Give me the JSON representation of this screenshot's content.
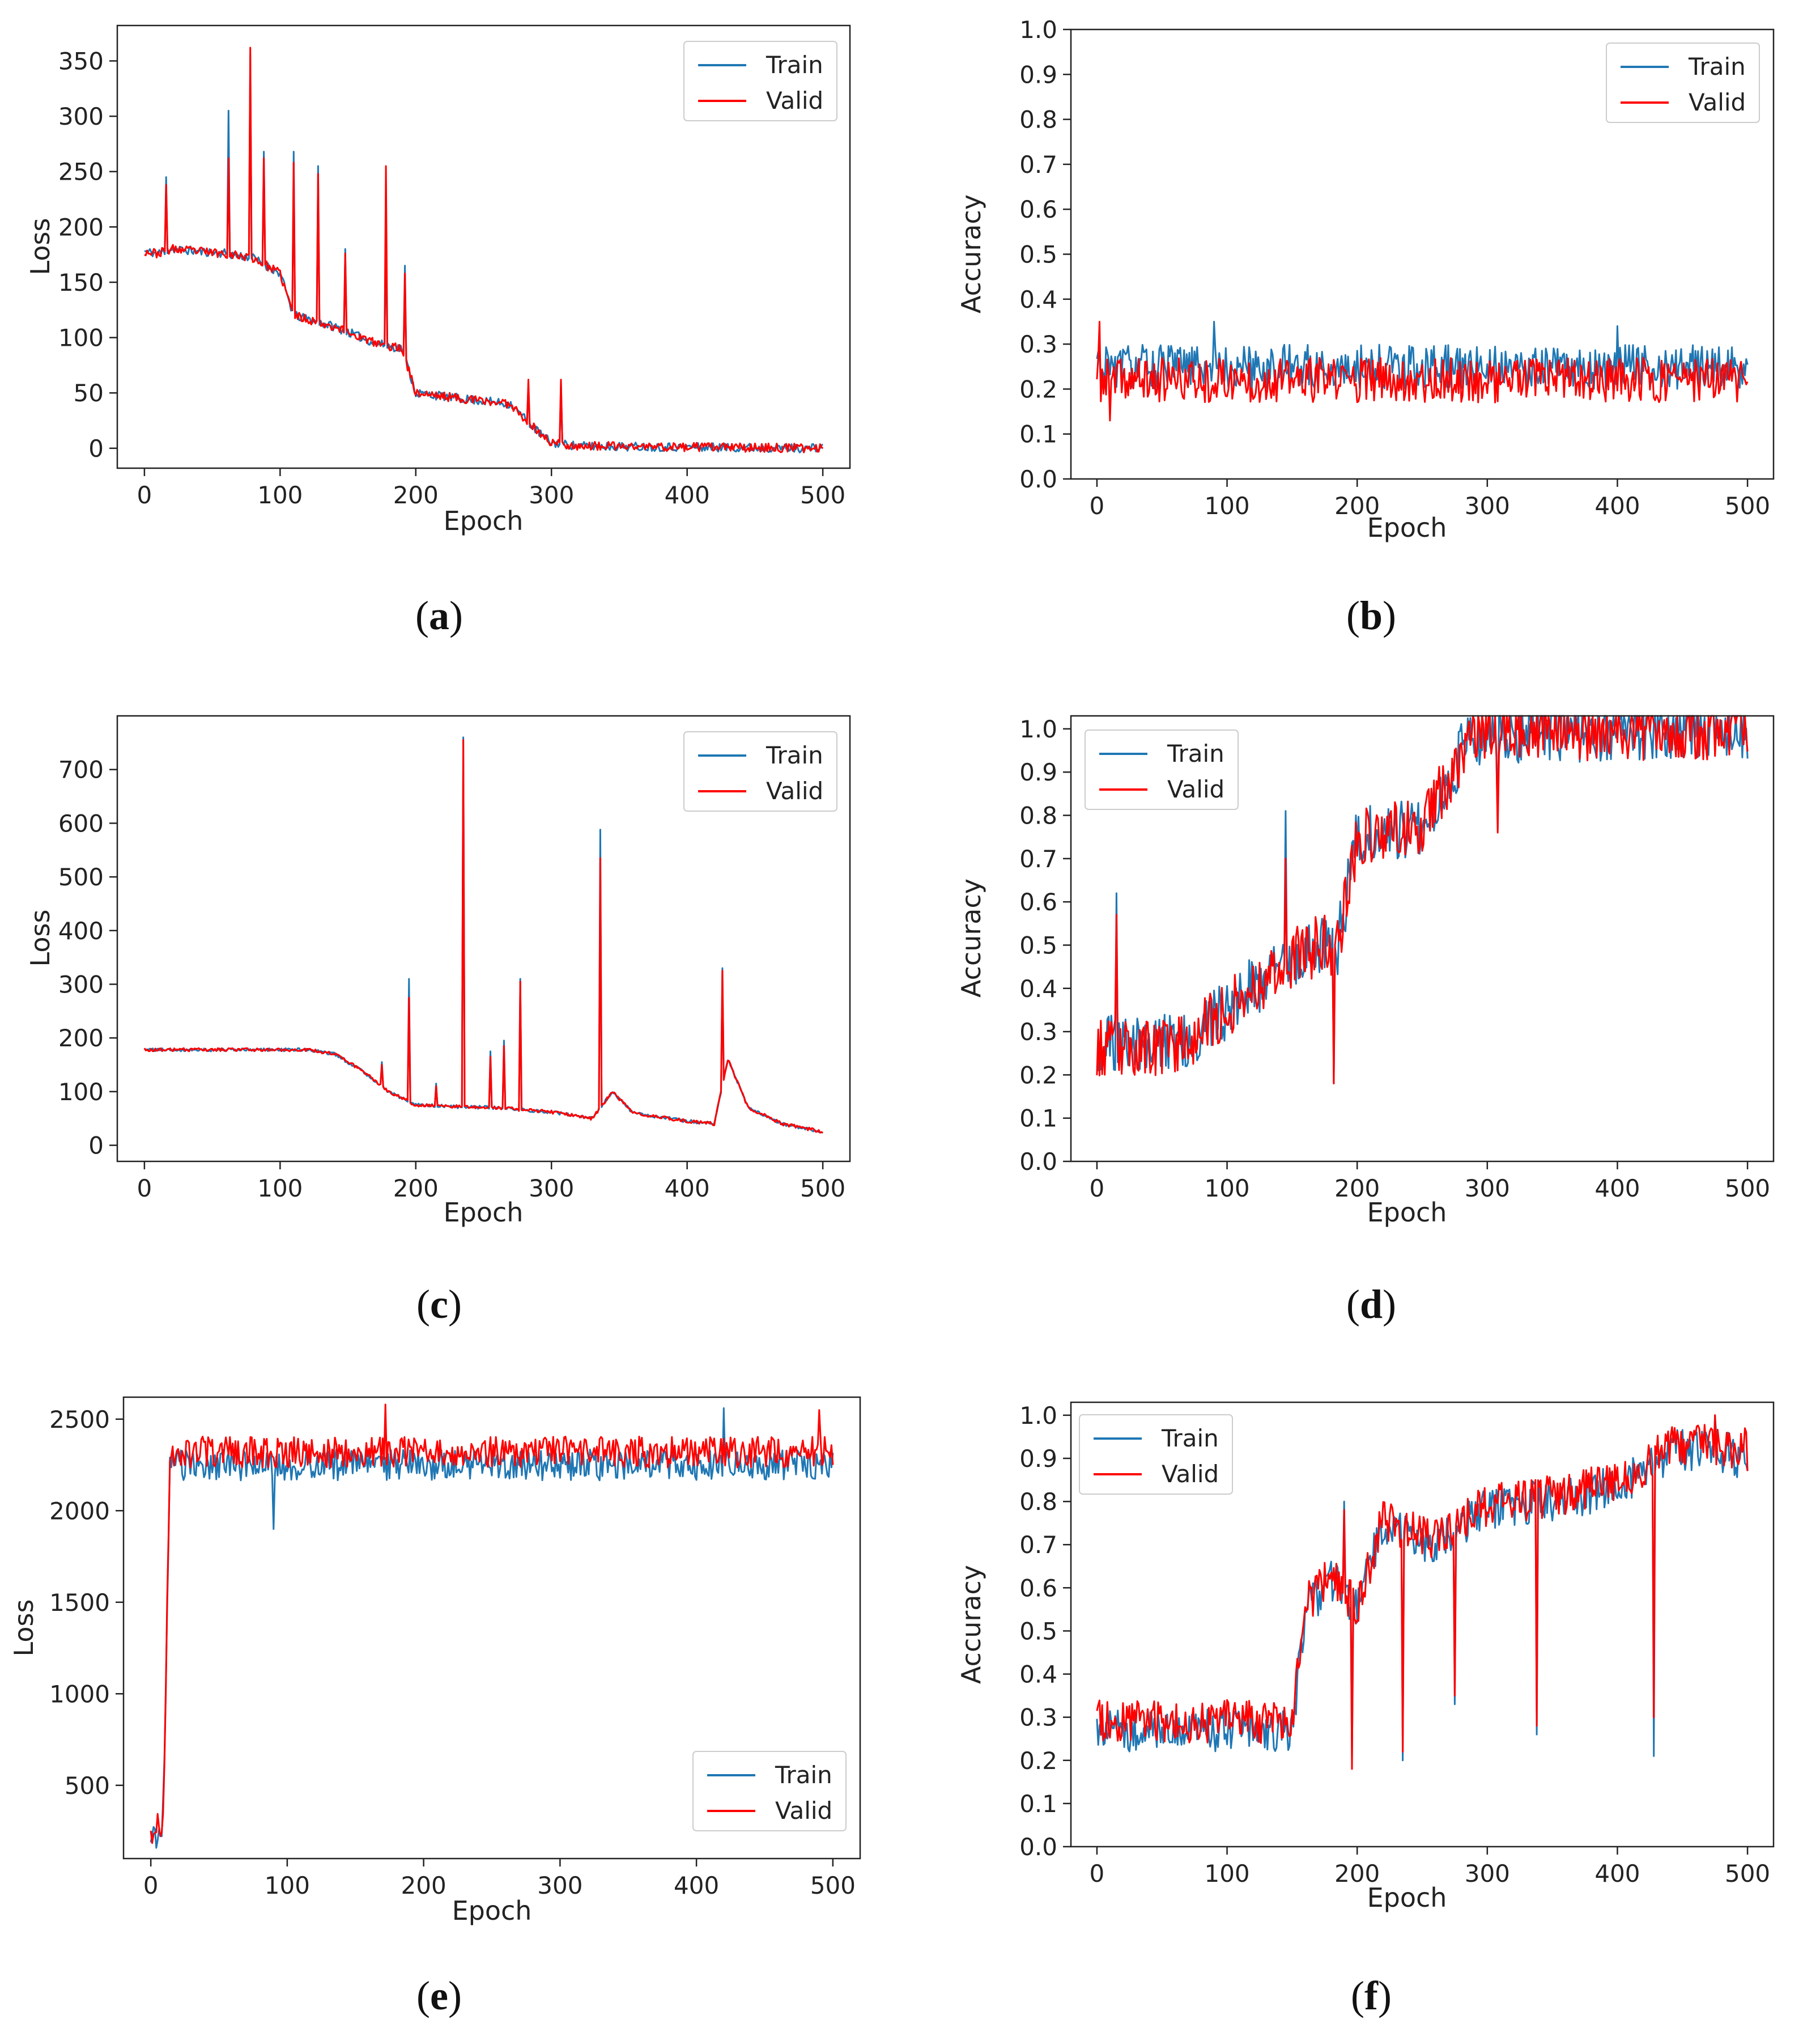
{
  "colors": {
    "train": "#1f77b4",
    "valid": "#ff0000",
    "axes": "#222222",
    "legend_border": "#cccccc"
  },
  "chart_data": [
    {
      "id": "a",
      "type": "line",
      "caption_label": "a",
      "xlabel": "Epoch",
      "ylabel": "Loss",
      "xlim": [
        -20,
        520
      ],
      "ylim": [
        -18,
        382
      ],
      "xticks": [
        "0",
        "100",
        "200",
        "300",
        "400",
        "500"
      ],
      "yticks": [
        "0",
        "50",
        "100",
        "150",
        "200",
        "250",
        "300",
        "350"
      ],
      "legend_position": "top-right",
      "legend": [
        "Train",
        "Valid"
      ],
      "series": [
        {
          "name": "Train",
          "noise": 4,
          "seed": 11,
          "keypoints": [
            [
              0,
              178
            ],
            [
              10,
              176
            ],
            [
              20,
              180
            ],
            [
              40,
              178
            ],
            [
              60,
              176
            ],
            [
              80,
              172
            ],
            [
              100,
              158
            ],
            [
              110,
              120
            ],
            [
              140,
              110
            ],
            [
              170,
              95
            ],
            [
              190,
              90
            ],
            [
              200,
              50
            ],
            [
              240,
              44
            ],
            [
              270,
              40
            ],
            [
              290,
              15
            ],
            [
              300,
              5
            ],
            [
              320,
              2
            ],
            [
              500,
              0
            ]
          ],
          "spikes": [
            [
              16,
              245
            ],
            [
              62,
              305
            ],
            [
              78,
              355
            ],
            [
              88,
              268
            ],
            [
              110,
              268
            ],
            [
              128,
              255
            ],
            [
              148,
              180
            ],
            [
              178,
              195
            ],
            [
              192,
              165
            ],
            [
              283,
              55
            ],
            [
              307,
              60
            ]
          ]
        },
        {
          "name": "Valid",
          "noise": 4,
          "seed": 23,
          "keypoints": [
            [
              0,
              178
            ],
            [
              10,
              176
            ],
            [
              20,
              180
            ],
            [
              40,
              178
            ],
            [
              60,
              176
            ],
            [
              80,
              172
            ],
            [
              100,
              158
            ],
            [
              110,
              120
            ],
            [
              140,
              110
            ],
            [
              170,
              95
            ],
            [
              190,
              90
            ],
            [
              200,
              50
            ],
            [
              240,
              44
            ],
            [
              270,
              40
            ],
            [
              290,
              15
            ],
            [
              300,
              5
            ],
            [
              320,
              2
            ],
            [
              500,
              0
            ]
          ],
          "spikes": [
            [
              16,
              238
            ],
            [
              62,
              262
            ],
            [
              78,
              362
            ],
            [
              88,
              262
            ],
            [
              110,
              258
            ],
            [
              128,
              248
            ],
            [
              148,
              176
            ],
            [
              178,
              255
            ],
            [
              192,
              158
            ],
            [
              283,
              62
            ],
            [
              307,
              62
            ]
          ]
        }
      ]
    },
    {
      "id": "b",
      "type": "line",
      "caption_label": "b",
      "xlabel": "Epoch",
      "ylabel": "Accuracy",
      "xlim": [
        -20,
        520
      ],
      "ylim": [
        0.0,
        1.0
      ],
      "xticks": [
        "0",
        "100",
        "200",
        "300",
        "400",
        "500"
      ],
      "yticks": [
        "0.0",
        "0.1",
        "0.2",
        "0.3",
        "0.4",
        "0.5",
        "0.6",
        "0.7",
        "0.8",
        "0.9",
        "1.0"
      ],
      "legend_position": "top-right",
      "legend": [
        "Train",
        "Valid"
      ],
      "series": [
        {
          "name": "Train",
          "noise": 0.05,
          "seed": 31,
          "keypoints": [
            [
              0,
              0.25
            ],
            [
              500,
              0.25
            ]
          ],
          "spikes": [
            [
              90,
              0.35
            ],
            [
              400,
              0.34
            ]
          ]
        },
        {
          "name": "Valid",
          "noise": 0.05,
          "seed": 37,
          "keypoints": [
            [
              0,
              0.22
            ],
            [
              500,
              0.22
            ]
          ],
          "spikes": [
            [
              2,
              0.35
            ],
            [
              10,
              0.13
            ]
          ]
        }
      ]
    },
    {
      "id": "c",
      "type": "line",
      "caption_label": "c",
      "xlabel": "Epoch",
      "ylabel": "Loss",
      "xlim": [
        -20,
        520
      ],
      "ylim": [
        -30,
        800
      ],
      "xticks": [
        "0",
        "100",
        "200",
        "300",
        "400",
        "500"
      ],
      "yticks": [
        "0",
        "100",
        "200",
        "300",
        "400",
        "500",
        "600",
        "700"
      ],
      "legend_position": "top-right",
      "legend": [
        "Train",
        "Valid"
      ],
      "series": [
        {
          "name": "Train",
          "noise": 3,
          "seed": 41,
          "keypoints": [
            [
              0,
              178
            ],
            [
              120,
              178
            ],
            [
              140,
              170
            ],
            [
              160,
              140
            ],
            [
              180,
              100
            ],
            [
              200,
              75
            ],
            [
              230,
              72
            ],
            [
              260,
              70
            ],
            [
              300,
              62
            ],
            [
              330,
              50
            ],
            [
              345,
              100
            ],
            [
              360,
              60
            ],
            [
              400,
              45
            ],
            [
              420,
              40
            ],
            [
              430,
              160
            ],
            [
              445,
              70
            ],
            [
              470,
              40
            ],
            [
              500,
              25
            ]
          ],
          "spikes": [
            [
              175,
              155
            ],
            [
              195,
              310
            ],
            [
              215,
              115
            ],
            [
              235,
              760
            ],
            [
              255,
              175
            ],
            [
              265,
              195
            ],
            [
              277,
              310
            ],
            [
              336,
              588
            ],
            [
              426,
              330
            ]
          ]
        },
        {
          "name": "Valid",
          "noise": 3,
          "seed": 43,
          "keypoints": [
            [
              0,
              178
            ],
            [
              120,
              178
            ],
            [
              140,
              170
            ],
            [
              160,
              140
            ],
            [
              180,
              100
            ],
            [
              200,
              75
            ],
            [
              230,
              72
            ],
            [
              260,
              70
            ],
            [
              300,
              62
            ],
            [
              330,
              50
            ],
            [
              345,
              100
            ],
            [
              360,
              60
            ],
            [
              400,
              45
            ],
            [
              420,
              40
            ],
            [
              430,
              160
            ],
            [
              445,
              70
            ],
            [
              470,
              40
            ],
            [
              500,
              25
            ]
          ],
          "spikes": [
            [
              175,
              150
            ],
            [
              195,
              275
            ],
            [
              215,
              110
            ],
            [
              235,
              755
            ],
            [
              255,
              165
            ],
            [
              265,
              185
            ],
            [
              277,
              305
            ],
            [
              336,
              535
            ],
            [
              426,
              325
            ]
          ]
        }
      ]
    },
    {
      "id": "d",
      "type": "line",
      "caption_label": "d",
      "xlabel": "Epoch",
      "ylabel": "Accuracy",
      "xlim": [
        -20,
        520
      ],
      "ylim": [
        0.0,
        1.03
      ],
      "xticks": [
        "0",
        "100",
        "200",
        "300",
        "400",
        "500"
      ],
      "yticks": [
        "0.0",
        "0.1",
        "0.2",
        "0.3",
        "0.4",
        "0.5",
        "0.6",
        "0.7",
        "0.8",
        "0.9",
        "1.0"
      ],
      "legend_position": "top-left",
      "legend": [
        "Train",
        "Valid"
      ],
      "series": [
        {
          "name": "Train",
          "noise": 0.07,
          "seed": 51,
          "keypoints": [
            [
              0,
              0.27
            ],
            [
              50,
              0.27
            ],
            [
              80,
              0.3
            ],
            [
              110,
              0.38
            ],
            [
              140,
              0.45
            ],
            [
              170,
              0.5
            ],
            [
              185,
              0.5
            ],
            [
              200,
              0.75
            ],
            [
              250,
              0.78
            ],
            [
              270,
              0.88
            ],
            [
              285,
              0.98
            ],
            [
              300,
              0.99
            ],
            [
              500,
              1.0
            ]
          ],
          "spikes": [
            [
              15,
              0.62
            ],
            [
              145,
              0.81
            ],
            [
              182,
              0.18
            ],
            [
              308,
              0.77
            ]
          ]
        },
        {
          "name": "Valid",
          "noise": 0.07,
          "seed": 53,
          "keypoints": [
            [
              0,
              0.26
            ],
            [
              50,
              0.26
            ],
            [
              80,
              0.3
            ],
            [
              110,
              0.38
            ],
            [
              140,
              0.45
            ],
            [
              170,
              0.5
            ],
            [
              185,
              0.5
            ],
            [
              200,
              0.75
            ],
            [
              250,
              0.78
            ],
            [
              270,
              0.88
            ],
            [
              285,
              0.98
            ],
            [
              300,
              0.99
            ],
            [
              500,
              1.0
            ]
          ],
          "spikes": [
            [
              15,
              0.57
            ],
            [
              145,
              0.7
            ],
            [
              182,
              0.18
            ],
            [
              308,
              0.76
            ]
          ]
        }
      ]
    },
    {
      "id": "e",
      "type": "line",
      "caption_label": "e",
      "xlabel": "Epoch",
      "ylabel": "Loss",
      "xlim": [
        -20,
        520
      ],
      "ylim": [
        100,
        2620
      ],
      "xticks": [
        "0",
        "100",
        "200",
        "300",
        "400",
        "500"
      ],
      "yticks": [
        "500",
        "1000",
        "1500",
        "2000",
        "2500"
      ],
      "legend_position": "bottom-right",
      "legend": [
        "Train",
        "Valid"
      ],
      "series": [
        {
          "name": "Train",
          "noise": 85,
          "seed": 61,
          "keypoints": [
            [
              0,
              180
            ],
            [
              5,
              250
            ],
            [
              8,
              240
            ],
            [
              10,
              600
            ],
            [
              14,
              2250
            ],
            [
              500,
              2250
            ]
          ],
          "spikes": [
            [
              90,
              1900
            ],
            [
              420,
              2560
            ]
          ]
        },
        {
          "name": "Valid",
          "noise": 85,
          "seed": 67,
          "keypoints": [
            [
              0,
              170
            ],
            [
              5,
              300
            ],
            [
              8,
              210
            ],
            [
              10,
              600
            ],
            [
              14,
              2320
            ],
            [
              500,
              2320
            ]
          ],
          "spikes": [
            [
              172,
              2580
            ],
            [
              490,
              2550
            ]
          ]
        }
      ]
    },
    {
      "id": "f",
      "type": "line",
      "caption_label": "f",
      "xlabel": "Epoch",
      "ylabel": "Accuracy",
      "xlim": [
        -20,
        520
      ],
      "ylim": [
        0.0,
        1.03
      ],
      "xticks": [
        "0",
        "100",
        "200",
        "300",
        "400",
        "500"
      ],
      "yticks": [
        "0.0",
        "0.1",
        "0.2",
        "0.3",
        "0.4",
        "0.5",
        "0.6",
        "0.7",
        "0.8",
        "0.9",
        "1.0"
      ],
      "legend_position": "top-left",
      "legend": [
        "Train",
        "Valid"
      ],
      "series": [
        {
          "name": "Train",
          "noise": 0.05,
          "seed": 71,
          "keypoints": [
            [
              0,
              0.27
            ],
            [
              150,
              0.27
            ],
            [
              160,
              0.55
            ],
            [
              180,
              0.62
            ],
            [
              200,
              0.55
            ],
            [
              220,
              0.75
            ],
            [
              260,
              0.7
            ],
            [
              300,
              0.78
            ],
            [
              340,
              0.8
            ],
            [
              380,
              0.82
            ],
            [
              420,
              0.86
            ],
            [
              440,
              0.92
            ],
            [
              470,
              0.92
            ],
            [
              500,
              0.9
            ]
          ],
          "spikes": [
            [
              190,
              0.8
            ],
            [
              196,
              0.2
            ],
            [
              235,
              0.2
            ],
            [
              275,
              0.33
            ],
            [
              338,
              0.26
            ],
            [
              428,
              0.21
            ],
            [
              475,
              1.0
            ]
          ]
        },
        {
          "name": "Valid",
          "noise": 0.05,
          "seed": 73,
          "keypoints": [
            [
              0,
              0.29
            ],
            [
              150,
              0.29
            ],
            [
              160,
              0.56
            ],
            [
              180,
              0.63
            ],
            [
              200,
              0.56
            ],
            [
              220,
              0.76
            ],
            [
              260,
              0.71
            ],
            [
              300,
              0.79
            ],
            [
              340,
              0.81
            ],
            [
              380,
              0.83
            ],
            [
              420,
              0.87
            ],
            [
              440,
              0.93
            ],
            [
              470,
              0.93
            ],
            [
              500,
              0.92
            ]
          ],
          "spikes": [
            [
              190,
              0.78
            ],
            [
              196,
              0.18
            ],
            [
              235,
              0.22
            ],
            [
              275,
              0.35
            ],
            [
              338,
              0.28
            ],
            [
              428,
              0.3
            ],
            [
              475,
              1.0
            ]
          ]
        }
      ]
    }
  ]
}
